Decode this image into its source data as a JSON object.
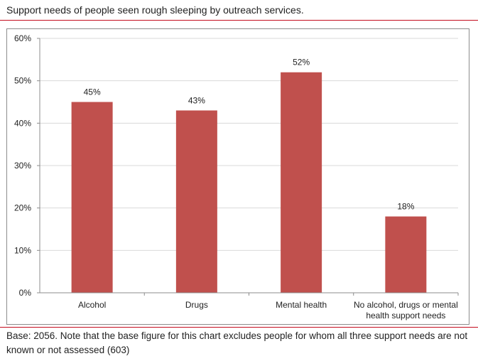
{
  "title": "Support needs of people seen rough sleeping by outreach services.",
  "base_note": "Base:  2056. Note that the base figure for this chart excludes people for whom all three support needs are not known or not assessed (603)",
  "colors": {
    "bar": "#c0504d",
    "grid": "#d9d9d9",
    "axis": "#8c8c8c",
    "accent_line": "#c40d1e"
  },
  "chart_data": {
    "type": "bar",
    "categories": [
      "Alcohol",
      "Drugs",
      "Mental health",
      "No alcohol, drugs or mental health support needs"
    ],
    "category_label_lines": [
      [
        "Alcohol"
      ],
      [
        "Drugs"
      ],
      [
        "Mental health"
      ],
      [
        "No alcohol, drugs or mental",
        "health support needs"
      ]
    ],
    "values": [
      45,
      43,
      52,
      18
    ],
    "data_labels": [
      "45%",
      "43%",
      "52%",
      "18%"
    ],
    "ylim": [
      0,
      60
    ],
    "yticks": [
      0,
      10,
      20,
      30,
      40,
      50,
      60
    ],
    "ytick_labels": [
      "0%",
      "10%",
      "20%",
      "30%",
      "40%",
      "50%",
      "60%"
    ],
    "title": "Support needs of people seen rough sleeping by outreach services.",
    "xlabel": "",
    "ylabel": "",
    "grid": true
  }
}
